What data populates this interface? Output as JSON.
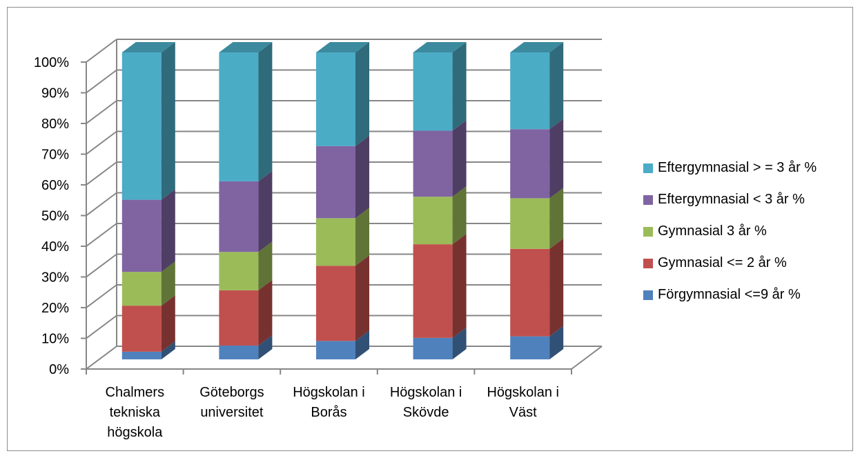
{
  "chart_data": {
    "type": "bar",
    "stacked": true,
    "three_d": true,
    "categories": [
      [
        "Chalmers",
        "tekniska",
        "högskola"
      ],
      [
        "Göteborgs",
        "universitet"
      ],
      [
        "Högskolan i",
        "Borås"
      ],
      [
        "Högskolan i",
        "Skövde"
      ],
      [
        "Högskolan i",
        "Väst"
      ]
    ],
    "series": [
      {
        "name": "Förgymnasial <=9 år %",
        "color": "#4f81bd",
        "values": [
          2.5,
          4.5,
          6,
          7,
          7.5
        ]
      },
      {
        "name": "Gymnasial <= 2 år %",
        "color": "#c0504d",
        "values": [
          15,
          18,
          24.5,
          30.5,
          28.5
        ]
      },
      {
        "name": "Gymnasial 3 år %",
        "color": "#9bbb59",
        "values": [
          11,
          12.5,
          15.5,
          15.5,
          16.5
        ]
      },
      {
        "name": "Eftergymnasial < 3 år %",
        "color": "#8064a2",
        "values": [
          23.5,
          23,
          23.5,
          21.5,
          22.5
        ]
      },
      {
        "name": "Eftergymnasial > = 3 år %",
        "color": "#4bacc6",
        "values": [
          48,
          42,
          30.5,
          25.5,
          25
        ]
      }
    ],
    "ylim": [
      0,
      100
    ],
    "ytick_labels": [
      "0%",
      "10%",
      "20%",
      "30%",
      "40%",
      "50%",
      "60%",
      "70%",
      "80%",
      "90%",
      "100%"
    ],
    "grid": true,
    "legend_position": "right"
  }
}
